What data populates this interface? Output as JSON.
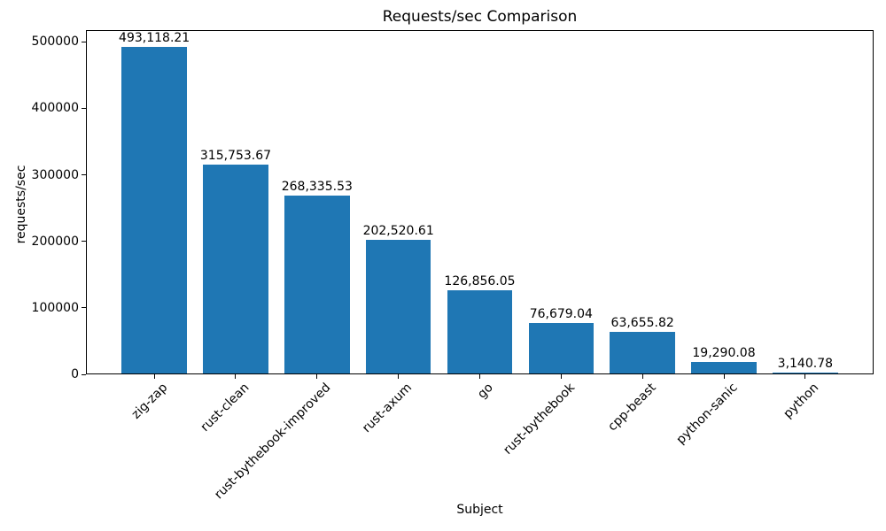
{
  "chart_data": {
    "type": "bar",
    "title": "Requests/sec Comparison",
    "xlabel": "Subject",
    "ylabel": "requests/sec",
    "categories": [
      "zig-zap",
      "rust-clean",
      "rust-bythebook-improved",
      "rust-axum",
      "go",
      "rust-bythebook",
      "cpp-beast",
      "python-sanic",
      "python"
    ],
    "values": [
      493118.21,
      315753.67,
      268335.53,
      202520.61,
      126856.05,
      76679.04,
      63655.82,
      19290.08,
      3140.78
    ],
    "value_labels": [
      "493,118.21",
      "315,753.67",
      "268,335.53",
      "202,520.61",
      "126,856.05",
      "76,679.04",
      "63,655.82",
      "19,290.08",
      "3,140.78"
    ],
    "yticks": [
      0,
      100000,
      200000,
      300000,
      400000,
      500000
    ],
    "ytick_labels": [
      "0",
      "100000",
      "200000",
      "300000",
      "400000",
      "500000"
    ],
    "ylim": [
      0,
      517774
    ],
    "xtick_rotation": 45,
    "bar_color": "#1f77b4",
    "grid": false,
    "legend": null
  }
}
